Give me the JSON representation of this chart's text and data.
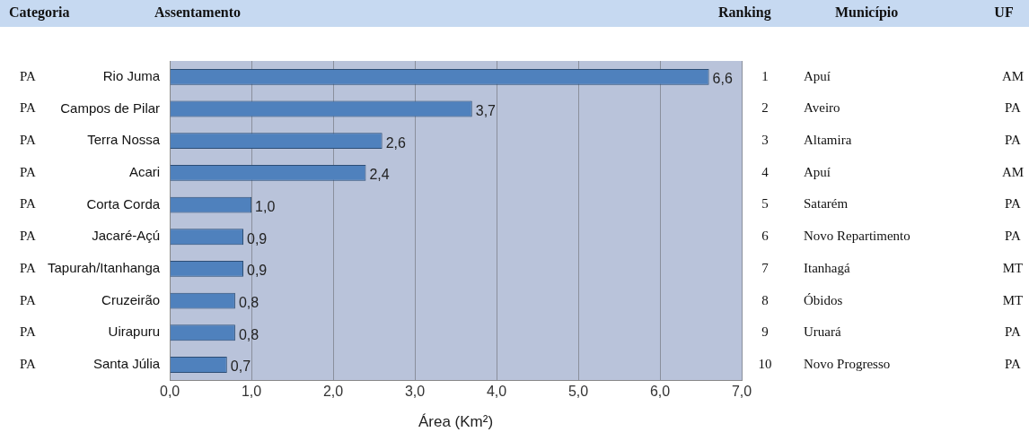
{
  "chart_data": {
    "type": "bar",
    "orientation": "horizontal",
    "ylabel": "Assentamento",
    "xlabel": "Área (Km²)",
    "categories": [
      "Rio Juma",
      "Campos de Pilar",
      "Terra Nossa",
      "Acari",
      "Corta Corda",
      "Jacaré-Açú",
      "Tapurah/Itanhanga",
      "Cruzeirão",
      "Uirapuru",
      "Santa Júlia"
    ],
    "values": [
      6.6,
      3.7,
      2.6,
      2.4,
      1.0,
      0.9,
      0.9,
      0.8,
      0.8,
      0.7
    ],
    "value_labels": [
      "6,6",
      "3,7",
      "2,6",
      "2,4",
      "1,0",
      "0,9",
      "0,9",
      "0,8",
      "0,8",
      "0,7"
    ],
    "color": "#4f81bd",
    "xlim": [
      0,
      7
    ],
    "xticks": [
      {
        "value": 0,
        "label": "0,0"
      },
      {
        "value": 1,
        "label": "1,0"
      },
      {
        "value": 2,
        "label": "2,0"
      },
      {
        "value": 3,
        "label": "3,0"
      },
      {
        "value": 4,
        "label": "4,0"
      },
      {
        "value": 5,
        "label": "5,0"
      },
      {
        "value": 6,
        "label": "6,0"
      },
      {
        "value": 7,
        "label": "7,0"
      }
    ],
    "grid": "x",
    "legend": false,
    "annotations": [
      "Categoria",
      "Ranking",
      "Município",
      "UF",
      "PA",
      "1",
      "Apuí",
      "AM",
      "PA",
      "2",
      "Aveiro",
      "PA",
      "PA",
      "3",
      "Altamira",
      "PA",
      "PA",
      "4",
      "Apuí",
      "AM",
      "PA",
      "5",
      "Satarém",
      "PA",
      "PA",
      "6",
      "Novo Repartimento",
      "PA",
      "PA",
      "7",
      "Itanhagá",
      "MT",
      "PA",
      "8",
      "Óbidos",
      "MT",
      "PA",
      "9",
      "Uruará",
      "PA",
      "PA",
      "10",
      "Novo Progresso",
      "PA"
    ]
  }
}
